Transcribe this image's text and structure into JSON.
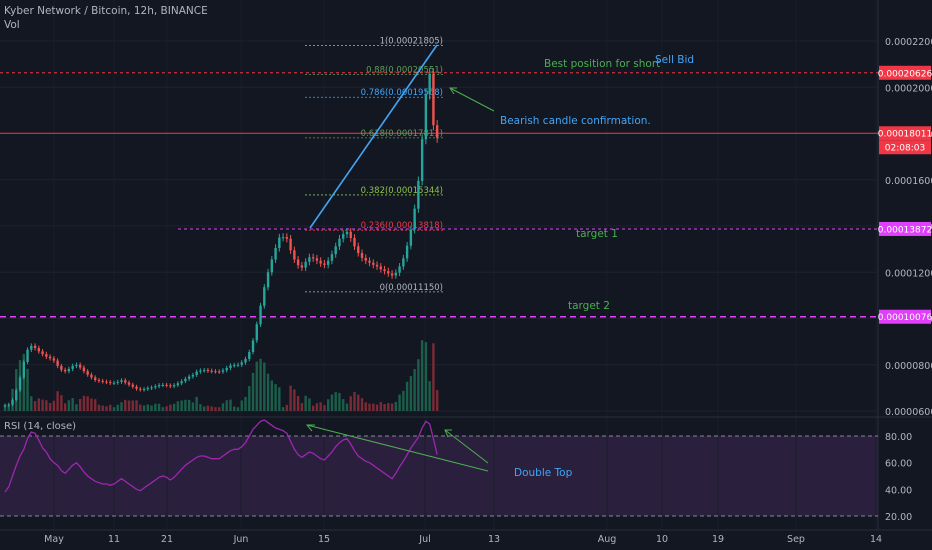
{
  "header": {
    "title": "Kyber Network / Bitcoin, 12h, BINANCE",
    "volume_label": "Vol"
  },
  "rsi": {
    "label": "RSI (14, close)"
  },
  "chart_data": [
    {
      "type": "candlestick",
      "title": "Kyber Network / Bitcoin, 12h, BINANCE",
      "y_axis_ticks": [
        "0.00022000",
        "0.00020000",
        "0.00018000",
        "0.00016000",
        "0.00014000",
        "0.00012000",
        "0.00010000",
        "0.00008000",
        "0.00006000"
      ],
      "y_axis_tick_values": [
        0.00022,
        0.0002,
        0.00018,
        0.00016,
        0.00014,
        0.00012,
        0.0001,
        8e-05,
        6e-05
      ],
      "x_axis_ticks": [
        "May",
        "11",
        "21",
        "Jun",
        "15",
        "Jul",
        "13",
        "Aug",
        "10",
        "19",
        "Sep",
        "14"
      ],
      "price_labels": [
        {
          "text": "0.00020626",
          "value": 0.00020626,
          "color": "#f23645"
        },
        {
          "text": "0.00018011",
          "value": 0.00018011,
          "color": "#f23645"
        },
        {
          "text": "02:08:03",
          "value": 0.000179,
          "color": "#f23645"
        },
        {
          "text": "0.00013872",
          "value": 0.00013872,
          "color": "#e040fb"
        },
        {
          "text": "0.00010076",
          "value": 0.00010076,
          "color": "#e040fb"
        }
      ],
      "fib_levels": [
        {
          "text": "1(0.00021805)",
          "value": 0.00021805,
          "color": "#b2b5be"
        },
        {
          "text": "0.88(0.00020551)",
          "value": 0.00020551,
          "color": "#5d9c59"
        },
        {
          "text": "0.786(0.00019568)",
          "value": 0.00019568,
          "color": "#42a5f5"
        },
        {
          "text": "0.618(0.00017811)",
          "value": 0.00017811,
          "color": "#5d9c59"
        },
        {
          "text": "0.382(0.00015344)",
          "value": 0.00015344,
          "color": "#8bc34a"
        },
        {
          "text": "0.236(0.00013818)",
          "value": 0.00013818,
          "color": "#f23645"
        },
        {
          "text": "0(0.00011150)",
          "value": 0.0001115,
          "color": "#b2b5be"
        }
      ],
      "annotations": [
        {
          "text": "Best position for short",
          "color": "#4caf50"
        },
        {
          "text": "Sell  Bid",
          "color": "#42a5f5"
        },
        {
          "text": "Bearish candle confirmation.",
          "color": "#42a5f5"
        },
        {
          "text": "target 1",
          "color": "#4caf50"
        },
        {
          "text": "target 2",
          "color": "#4caf50"
        }
      ],
      "horizontal_lines": [
        {
          "value": 0.00020626,
          "style": "dashed",
          "color": "#f23645"
        },
        {
          "value": 0.00018011,
          "style": "solid",
          "color": "#f23645"
        },
        {
          "value": 0.00013872,
          "style": "dashed",
          "color": "#e040fb"
        },
        {
          "value": 0.00010076,
          "style": "dashed",
          "color": "#e040fb"
        }
      ],
      "closes": [
        6.25e-05,
        6.28e-05,
        6.48e-05,
        6.9e-05,
        7.45e-05,
        8.12e-05,
        8.65e-05,
        8.82e-05,
        8.72e-05,
        8.58e-05,
        8.46e-05,
        8.35e-05,
        8.28e-05,
        8.18e-05,
        7.95e-05,
        7.78e-05,
        7.72e-05,
        7.82e-05,
        7.95e-05,
        8e-05,
        7.88e-05,
        7.72e-05,
        7.57e-05,
        7.45e-05,
        7.34e-05,
        7.3e-05,
        7.27e-05,
        7.25e-05,
        7.21e-05,
        7.22e-05,
        7.26e-05,
        7.33e-05,
        7.23e-05,
        7.14e-05,
        7.05e-05,
        6.96e-05,
        6.92e-05,
        6.95e-05,
        6.99e-05,
        7.02e-05,
        7.07e-05,
        7.12e-05,
        7.13e-05,
        7.11e-05,
        7.07e-05,
        7.12e-05,
        7.2e-05,
        7.29e-05,
        7.39e-05,
        7.49e-05,
        7.56e-05,
        7.7e-05,
        7.75e-05,
        7.77e-05,
        7.74e-05,
        7.72e-05,
        7.71e-05,
        7.7e-05,
        7.76e-05,
        7.86e-05,
        7.97e-05,
        7.99e-05,
        8e-05,
        8.1e-05,
        8.25e-05,
        8.55e-05,
        9.05e-05,
        9.75e-05,
        0.0001055,
        0.0001135,
        0.00012,
        0.0001255,
        0.0001305,
        0.000135,
        0.0001352,
        0.0001345,
        0.0001295,
        0.0001255,
        0.000123,
        0.000122,
        0.0001245,
        0.0001265,
        0.000126,
        0.000125,
        0.0001238,
        0.0001232,
        0.000125,
        0.0001278,
        0.0001312,
        0.0001345,
        0.0001365,
        0.0001375,
        0.0001348,
        0.0001312,
        0.0001283,
        0.0001262,
        0.000125,
        0.0001241,
        0.0001232,
        0.0001225,
        0.0001213,
        0.0001205,
        0.0001195,
        0.0001186,
        0.0001198,
        0.0001225,
        0.000126,
        0.0001315,
        0.0001385,
        0.0001475,
        0.0001595,
        0.0001775,
        0.000197,
        0.0002058,
        0.0001836,
        0.00017811
      ],
      "rsi_overbought": 80,
      "rsi_oversold": 20,
      "rsi_ticks": [
        "80.00",
        "60.00",
        "40.00",
        "20.00"
      ],
      "rsi_tick_values": [
        80,
        60,
        40,
        20
      ],
      "rsi_annotations": [
        {
          "text": "Double Top",
          "color": "#42a5f5"
        }
      ],
      "rsi_values": [
        38,
        42,
        50,
        58,
        65,
        70,
        78,
        83,
        82,
        77,
        71,
        68,
        63,
        60,
        58,
        54,
        52,
        55,
        58,
        60,
        57,
        53,
        50,
        48,
        46,
        45,
        44,
        44,
        43,
        44,
        46,
        48,
        46,
        44,
        42,
        40,
        39,
        41,
        43,
        45,
        47,
        49,
        50,
        49,
        47,
        49,
        52,
        55,
        58,
        60,
        62,
        64,
        65,
        65,
        64,
        63,
        63,
        63,
        65,
        67,
        69,
        70,
        70,
        72,
        75,
        80,
        85,
        88,
        91,
        92,
        90,
        88,
        86,
        85,
        84,
        82,
        76,
        70,
        66,
        64,
        66,
        68,
        67,
        65,
        63,
        62,
        65,
        68,
        72,
        75,
        77,
        78,
        74,
        69,
        65,
        63,
        61,
        60,
        58,
        56,
        54,
        52,
        50,
        48,
        52,
        57,
        61,
        66,
        71,
        75,
        79,
        86,
        91,
        89,
        78,
        66
      ]
    }
  ]
}
